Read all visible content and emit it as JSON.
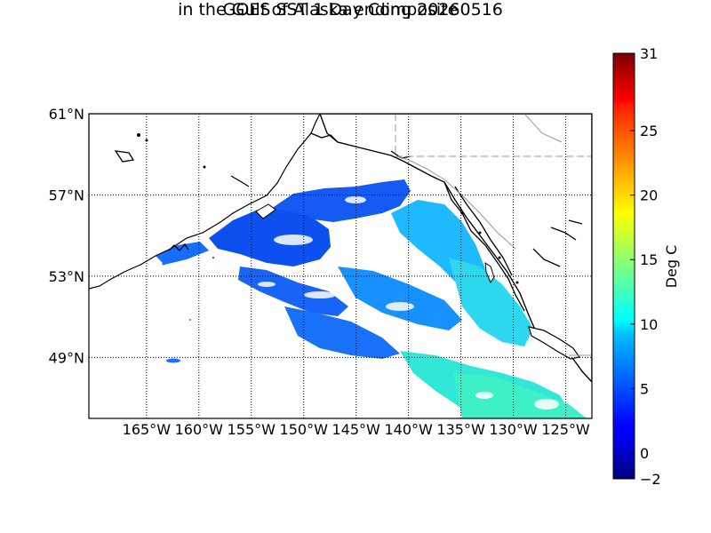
{
  "title_line1": "GOES SST 1 Day Composite",
  "title_line2": "in the Gulf of Alaska ending 20260516",
  "map": {
    "lon_range": [
      -170.5,
      -122.5
    ],
    "lat_range": [
      46,
      61
    ],
    "lon_ticks": [
      -165,
      -160,
      -155,
      -150,
      -145,
      -140,
      -135,
      -130,
      -125
    ],
    "lon_tick_labels": [
      "165°W",
      "160°W",
      "155°W",
      "150°W",
      "145°W",
      "140°W",
      "135°W",
      "130°W",
      "125°W"
    ],
    "lat_ticks": [
      61,
      57,
      53,
      49
    ],
    "lat_tick_labels": [
      "61°N",
      "57°N",
      "53°N",
      "49°N"
    ]
  },
  "colorbar": {
    "label": "Deg C",
    "vmin": -2,
    "vmax": 31,
    "ticks": [
      31,
      25,
      20,
      15,
      10,
      5,
      0,
      -2
    ],
    "tick_labels": [
      "31",
      "25",
      "20",
      "15",
      "10",
      "5",
      "0",
      "−2"
    ],
    "colormap": "jet"
  },
  "colors": {
    "coast": "#000000",
    "grid": "#000000",
    "border": "#999999"
  }
}
